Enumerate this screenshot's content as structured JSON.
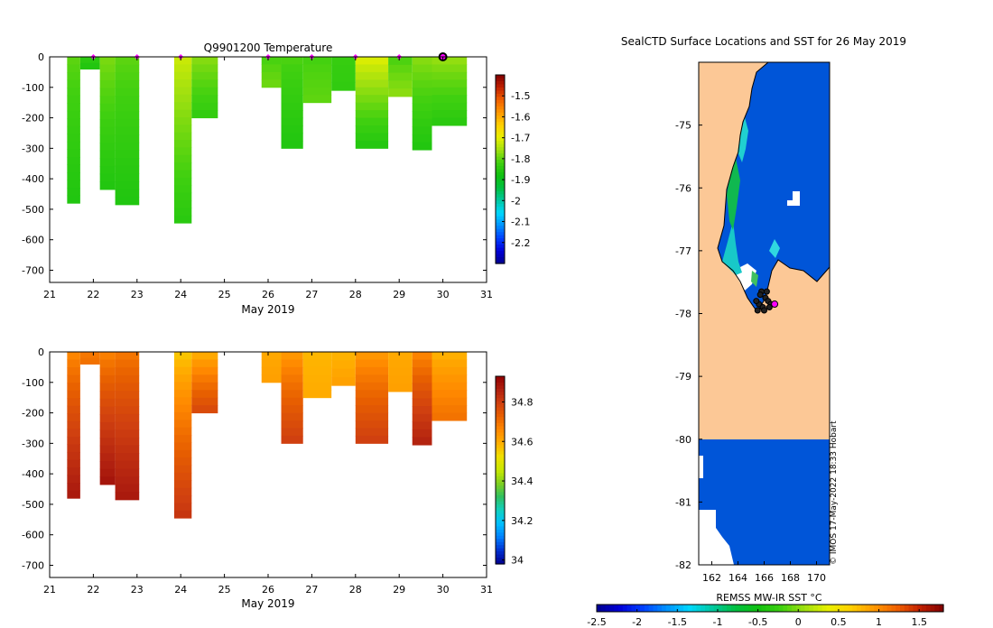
{
  "colors": {
    "temp_scale": [
      "#00008f",
      "#0000d8",
      "#0040ff",
      "#0090ff",
      "#00d8ff",
      "#00c8a0",
      "#00c040",
      "#10c010",
      "#40d010",
      "#a0e010",
      "#e8f000",
      "#ffd000",
      "#ff9800",
      "#f06000",
      "#c02000",
      "#800000"
    ],
    "sal_scale": [
      "#000090",
      "#0030d0",
      "#0080ff",
      "#00c0ff",
      "#10d0c0",
      "#30c060",
      "#80d020",
      "#c8e800",
      "#f0e000",
      "#ffb000",
      "#ff8800",
      "#e86000",
      "#d04010",
      "#b02010",
      "#900000"
    ],
    "land": "#fcc896",
    "ocean_sst": "#0055d8",
    "marker": "#ff00ff"
  },
  "chart_data": [
    {
      "id": "temperature",
      "type": "heatmap",
      "title": "Q9901200  Temperature",
      "xlabel": "May 2019",
      "ylabel": "",
      "xlim": [
        21,
        31
      ],
      "ylim": [
        -740,
        0
      ],
      "xticks": [
        "21",
        "22",
        "23",
        "24",
        "25",
        "26",
        "27",
        "28",
        "29",
        "30",
        "31"
      ],
      "yticks": [
        "0",
        "-100",
        "-200",
        "-300",
        "-400",
        "-500",
        "-600",
        "-700"
      ],
      "colorbar": {
        "min": -2.3,
        "max": -1.4,
        "ticks": [
          "-1.5",
          "-1.6",
          "-1.7",
          "-1.8",
          "-1.9",
          "-2",
          "-2.1",
          "-2.2"
        ]
      },
      "markers_x": [
        22.0,
        23.0,
        24.0,
        26.0,
        27.0,
        28.0,
        29.0
      ],
      "current_marker_x": 30.0,
      "profiles": [
        {
          "x0": 21.4,
          "x1": 21.7,
          "depth": 480,
          "top": -1.8,
          "bottom": -1.86
        },
        {
          "x0": 21.7,
          "x1": 22.15,
          "depth": 40,
          "top": -1.84,
          "bottom": -1.86
        },
        {
          "x0": 22.15,
          "x1": 22.5,
          "depth": 435,
          "top": -1.78,
          "bottom": -1.86
        },
        {
          "x0": 22.5,
          "x1": 23.05,
          "depth": 485,
          "top": -1.8,
          "bottom": -1.86
        },
        {
          "x0": 23.85,
          "x1": 24.25,
          "depth": 545,
          "top": -1.72,
          "bottom": -1.85
        },
        {
          "x0": 24.25,
          "x1": 24.85,
          "depth": 200,
          "top": -1.77,
          "bottom": -1.84
        },
        {
          "x0": 25.85,
          "x1": 26.3,
          "depth": 100,
          "top": -1.82,
          "bottom": -1.79
        },
        {
          "x0": 26.3,
          "x1": 26.8,
          "depth": 300,
          "top": -1.81,
          "bottom": -1.86
        },
        {
          "x0": 26.8,
          "x1": 27.45,
          "depth": 150,
          "top": -1.82,
          "bottom": -1.8
        },
        {
          "x0": 27.45,
          "x1": 28.0,
          "depth": 110,
          "top": -1.83,
          "bottom": -1.84
        },
        {
          "x0": 28.0,
          "x1": 28.75,
          "depth": 300,
          "top": -1.7,
          "bottom": -1.86
        },
        {
          "x0": 28.75,
          "x1": 29.3,
          "depth": 130,
          "top": -1.82,
          "bottom": -1.77
        },
        {
          "x0": 29.3,
          "x1": 29.75,
          "depth": 305,
          "top": -1.77,
          "bottom": -1.86
        },
        {
          "x0": 29.75,
          "x1": 30.55,
          "depth": 225,
          "top": -1.76,
          "bottom": -1.85
        }
      ]
    },
    {
      "id": "salinity",
      "type": "heatmap",
      "title": "",
      "xlabel": "May 2019",
      "ylabel": "",
      "xlim": [
        21,
        31
      ],
      "ylim": [
        -740,
        0
      ],
      "xticks": [
        "21",
        "22",
        "23",
        "24",
        "25",
        "26",
        "27",
        "28",
        "29",
        "30",
        "31"
      ],
      "yticks": [
        "0",
        "-100",
        "-200",
        "-300",
        "-400",
        "-500",
        "-600",
        "-700"
      ],
      "colorbar": {
        "min": 33.98,
        "max": 34.93,
        "ticks": [
          "34.8",
          "34.6",
          "34.4",
          "34.2",
          "34"
        ]
      },
      "profiles": [
        {
          "x0": 21.4,
          "x1": 21.7,
          "depth": 480,
          "top": 34.65,
          "bottom": 34.88
        },
        {
          "x0": 21.7,
          "x1": 22.15,
          "depth": 40,
          "top": 34.68,
          "bottom": 34.7
        },
        {
          "x0": 22.15,
          "x1": 22.5,
          "depth": 435,
          "top": 34.66,
          "bottom": 34.89
        },
        {
          "x0": 22.5,
          "x1": 23.05,
          "depth": 485,
          "top": 34.68,
          "bottom": 34.88
        },
        {
          "x0": 23.85,
          "x1": 24.25,
          "depth": 545,
          "top": 34.55,
          "bottom": 34.82
        },
        {
          "x0": 24.25,
          "x1": 24.85,
          "depth": 200,
          "top": 34.58,
          "bottom": 34.78
        },
        {
          "x0": 25.85,
          "x1": 26.3,
          "depth": 100,
          "top": 34.6,
          "bottom": 34.62
        },
        {
          "x0": 26.3,
          "x1": 26.8,
          "depth": 300,
          "top": 34.62,
          "bottom": 34.8
        },
        {
          "x0": 26.8,
          "x1": 27.45,
          "depth": 150,
          "top": 34.58,
          "bottom": 34.6
        },
        {
          "x0": 27.45,
          "x1": 28.0,
          "depth": 110,
          "top": 34.58,
          "bottom": 34.62
        },
        {
          "x0": 28.0,
          "x1": 28.75,
          "depth": 300,
          "top": 34.62,
          "bottom": 34.8
        },
        {
          "x0": 28.75,
          "x1": 29.3,
          "depth": 130,
          "top": 34.6,
          "bottom": 34.62
        },
        {
          "x0": 29.3,
          "x1": 29.75,
          "depth": 305,
          "top": 34.65,
          "bottom": 34.86
        },
        {
          "x0": 29.75,
          "x1": 30.55,
          "depth": 225,
          "top": 34.58,
          "bottom": 34.7
        }
      ]
    },
    {
      "id": "map",
      "type": "heatmap",
      "title": "SealCTD Surface Locations and SST for 26 May 2019",
      "xlabel": "",
      "ylabel": "",
      "xlim": [
        161,
        171
      ],
      "ylim": [
        -82,
        -74
      ],
      "xticks": [
        "162",
        "164",
        "166",
        "168",
        "170"
      ],
      "yticks": [
        "-75",
        "-76",
        "-77",
        "-78",
        "-79",
        "-80",
        "-81",
        "-82"
      ],
      "colorbar": {
        "label": "REMSS MW-IR SST °C",
        "min": -2.5,
        "max": 1.8,
        "ticks": [
          "-2.5",
          "-2",
          "-1.5",
          "-1",
          "-0.5",
          "0",
          "0.5",
          "1",
          "1.5"
        ]
      },
      "credit": "© IMOS 17-May-2022 18:33 Hobart",
      "locations": [
        {
          "lon": 165.8,
          "lat": -77.65
        },
        {
          "lon": 166.1,
          "lat": -77.75
        },
        {
          "lon": 165.6,
          "lat": -77.85
        },
        {
          "lon": 166.3,
          "lat": -77.8
        },
        {
          "lon": 165.9,
          "lat": -77.9
        },
        {
          "lon": 166.5,
          "lat": -77.85
        },
        {
          "lon": 165.4,
          "lat": -77.8
        },
        {
          "lon": 166.0,
          "lat": -77.95
        },
        {
          "lon": 165.7,
          "lat": -77.7
        },
        {
          "lon": 166.2,
          "lat": -77.65
        },
        {
          "lon": 166.4,
          "lat": -77.9
        },
        {
          "lon": 165.5,
          "lat": -77.95
        }
      ],
      "current_location": {
        "lon": 166.8,
        "lat": -77.85
      }
    }
  ]
}
